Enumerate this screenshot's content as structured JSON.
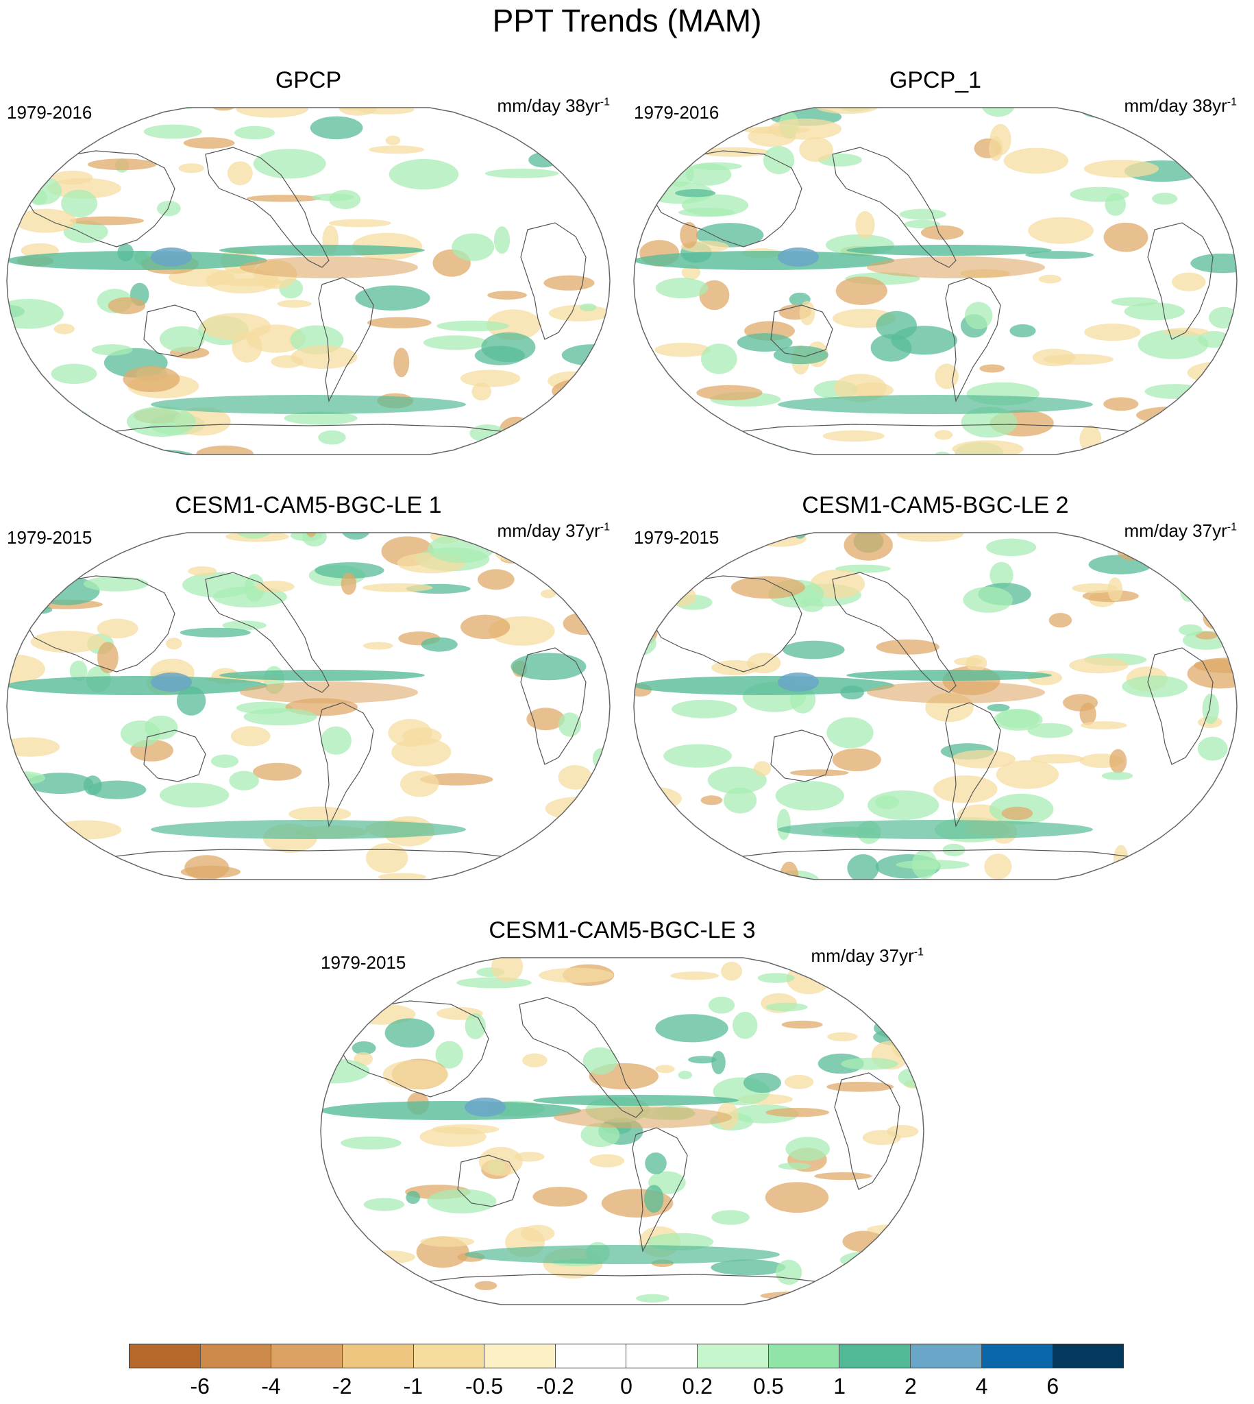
{
  "title": "PPT Trends (MAM)",
  "panels": [
    {
      "name": "GPCP",
      "period": "1979-2016",
      "units": "mm/day 38yr",
      "units_exp": "-1"
    },
    {
      "name": "GPCP_1",
      "period": "1979-2016",
      "units": "mm/day 38yr",
      "units_exp": "-1"
    },
    {
      "name": "CESM1-CAM5-BGC-LE 1",
      "period": "1979-2015",
      "units": "mm/day 37yr",
      "units_exp": "-1"
    },
    {
      "name": "CESM1-CAM5-BGC-LE 2",
      "period": "1979-2015",
      "units": "mm/day 37yr",
      "units_exp": "-1"
    },
    {
      "name": "CESM1-CAM5-BGC-LE 3",
      "period": "1979-2015",
      "units": "mm/day 37yr",
      "units_exp": "-1"
    }
  ],
  "colorbar": {
    "labels": [
      "-6",
      "-4",
      "-2",
      "-1",
      "-0.5",
      "-0.2",
      "0",
      "0.2",
      "0.5",
      "1",
      "2",
      "4",
      "6"
    ],
    "colors": [
      "#b5682a",
      "#cd8a4a",
      "#dca264",
      "#efc67f",
      "#f5dc9d",
      "#fcf1c4",
      "#ffffff",
      "#ffffff",
      "#c8f6cc",
      "#91e4a8",
      "#52b996",
      "#6aa6c8",
      "#0a67a9",
      "#04385d"
    ]
  },
  "map_colors": {
    "ocean_outline": "#666666",
    "coast": "#555555",
    "dry_strong": "#e0aa6a",
    "dry": "#f5dca0",
    "wet": "#a8ecb4",
    "wet_strong": "#58bc98",
    "wet_extreme": "#6aa6c8"
  }
}
